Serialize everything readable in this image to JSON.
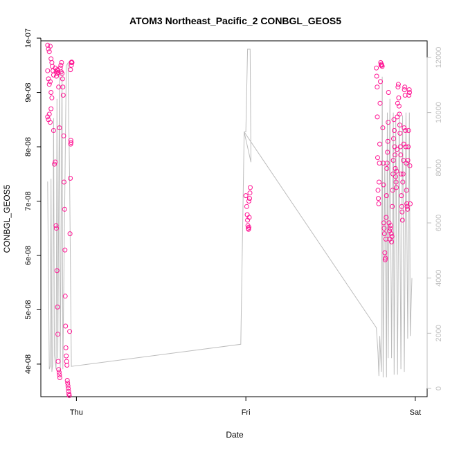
{
  "chart_data": {
    "type": "scatter",
    "title": "ATOM3 Northeast_Pacific_2 CONBGL_GEOS5",
    "xlabel": "Date",
    "ylabel": "CONBGL_GEOS5",
    "x_ticks": [
      {
        "label": "Thu",
        "day": 0
      },
      {
        "label": "Fri",
        "day": 1
      },
      {
        "label": "Sat",
        "day": 2
      }
    ],
    "xlim": [
      -0.21,
      2.07
    ],
    "ylim": [
      3.4e-08,
      9.95e-08
    ],
    "y_ticks": [
      "4e-08",
      "5e-08",
      "6e-08",
      "7e-08",
      "8e-08",
      "9e-08",
      "1e-07"
    ],
    "y_tick_values": [
      4e-08,
      5e-08,
      6e-08,
      7e-08,
      8e-08,
      9e-08,
      1e-07
    ],
    "y2_label": "",
    "y2_lim": [
      -300,
      12600
    ],
    "y2_ticks": [
      "0",
      "2000",
      "4000",
      "6000",
      "8000",
      "10000",
      "12000"
    ],
    "y2_tick_values": [
      0,
      2000,
      4000,
      6000,
      8000,
      10000,
      12000
    ],
    "series": [
      {
        "kind": "points",
        "color": "#ff1493",
        "points": [
          [
            -0.17,
            9.87e-08
          ],
          [
            -0.165,
            9.8e-08
          ],
          [
            -0.16,
            9.75e-08
          ],
          [
            -0.155,
            9.85e-08
          ],
          [
            -0.15,
            9.62e-08
          ],
          [
            -0.145,
            9.55e-08
          ],
          [
            -0.142,
            9.48e-08
          ],
          [
            -0.138,
            9.4e-08
          ],
          [
            -0.135,
            9.32e-08
          ],
          [
            -0.17,
            9.4e-08
          ],
          [
            -0.165,
            9.25e-08
          ],
          [
            -0.16,
            9.15e-08
          ],
          [
            -0.155,
            9.2e-08
          ],
          [
            -0.15,
            9e-08
          ],
          [
            -0.145,
            8.9e-08
          ],
          [
            -0.17,
            8.55e-08
          ],
          [
            -0.165,
            8.5e-08
          ],
          [
            -0.16,
            8.6e-08
          ],
          [
            -0.155,
            8.45e-08
          ],
          [
            -0.15,
            8.7e-08
          ],
          [
            -0.135,
            8.3e-08
          ],
          [
            -0.13,
            7.68e-08
          ],
          [
            -0.125,
            7.72e-08
          ],
          [
            -0.12,
            6.55e-08
          ],
          [
            -0.118,
            6.5e-08
          ],
          [
            -0.115,
            5.72e-08
          ],
          [
            -0.112,
            5.05e-08
          ],
          [
            -0.11,
            4.55e-08
          ],
          [
            -0.108,
            4.05e-08
          ],
          [
            -0.105,
            3.9e-08
          ],
          [
            -0.102,
            3.85e-08
          ],
          [
            -0.1,
            3.8e-08
          ],
          [
            -0.098,
            3.75e-08
          ],
          [
            -0.125,
            9.45e-08
          ],
          [
            -0.12,
            9.38e-08
          ],
          [
            -0.118,
            9.3e-08
          ],
          [
            -0.115,
            9.35e-08
          ],
          [
            -0.112,
            9.42e-08
          ],
          [
            -0.11,
            9.4e-08
          ],
          [
            -0.108,
            9.37e-08
          ],
          [
            -0.105,
            9.1e-08
          ],
          [
            -0.1,
            8.35e-08
          ],
          [
            -0.095,
            9.45e-08
          ],
          [
            -0.092,
            9.5e-08
          ],
          [
            -0.09,
            9.38e-08
          ],
          [
            -0.088,
            9.55e-08
          ],
          [
            -0.085,
            9.35e-08
          ],
          [
            -0.082,
            9.25e-08
          ],
          [
            -0.08,
            9.1e-08
          ],
          [
            -0.078,
            8.95e-08
          ],
          [
            -0.075,
            8.2e-08
          ],
          [
            -0.073,
            7.35e-08
          ],
          [
            -0.07,
            6.85e-08
          ],
          [
            -0.068,
            6.1e-08
          ],
          [
            -0.066,
            5.25e-08
          ],
          [
            -0.064,
            4.7e-08
          ],
          [
            -0.062,
            4.3e-08
          ],
          [
            -0.06,
            4.15e-08
          ],
          [
            -0.058,
            4.05e-08
          ],
          [
            -0.056,
            3.98e-08
          ],
          [
            -0.054,
            3.7e-08
          ],
          [
            -0.052,
            3.65e-08
          ],
          [
            -0.05,
            3.6e-08
          ],
          [
            -0.048,
            3.55e-08
          ],
          [
            -0.046,
            3.5e-08
          ],
          [
            -0.044,
            3.45e-08
          ],
          [
            -0.042,
            3.42e-08
          ],
          [
            -0.04,
            4.6e-08
          ],
          [
            -0.038,
            6.4e-08
          ],
          [
            -0.036,
            7.42e-08
          ],
          [
            -0.034,
            8.05e-08
          ],
          [
            -0.033,
            8.12e-08
          ],
          [
            -0.032,
            8.08e-08
          ],
          [
            -0.031,
            9.55e-08
          ],
          [
            -0.03,
            9.5e-08
          ],
          [
            -0.028,
            9.56e-08
          ],
          [
            -0.026,
            9.55e-08
          ],
          [
            -0.035,
            9.42e-08
          ],
          [
            1.0,
            7.1e-08
          ],
          [
            1.005,
            6.9e-08
          ],
          [
            1.008,
            6.75e-08
          ],
          [
            1.01,
            6.65e-08
          ],
          [
            1.012,
            6.55e-08
          ],
          [
            1.014,
            6.5e-08
          ],
          [
            1.016,
            6.48e-08
          ],
          [
            1.018,
            6.52e-08
          ],
          [
            1.02,
            6.7e-08
          ],
          [
            1.022,
            7.05e-08
          ],
          [
            1.024,
            7.15e-08
          ],
          [
            1.026,
            7.25e-08
          ],
          [
            1.018,
            7e-08
          ],
          [
            1.77,
            9.45e-08
          ],
          [
            1.772,
            9.3e-08
          ],
          [
            1.775,
            9.1e-08
          ],
          [
            1.776,
            8.55e-08
          ],
          [
            1.778,
            7.8e-08
          ],
          [
            1.78,
            7.2e-08
          ],
          [
            1.782,
            7.05e-08
          ],
          [
            1.784,
            6.95e-08
          ],
          [
            1.786,
            7.35e-08
          ],
          [
            1.788,
            7.7e-08
          ],
          [
            1.79,
            8.05e-08
          ],
          [
            1.792,
            8.8e-08
          ],
          [
            1.794,
            9.2e-08
          ],
          [
            1.796,
            9.55e-08
          ],
          [
            1.798,
            9.5e-08
          ],
          [
            1.8,
            9.52e-08
          ],
          [
            1.802,
            9.5e-08
          ],
          [
            1.805,
            9.48e-08
          ],
          [
            1.808,
            8.35e-08
          ],
          [
            1.81,
            7.7e-08
          ],
          [
            1.812,
            7.3e-08
          ],
          [
            1.814,
            6.6e-08
          ],
          [
            1.816,
            6.5e-08
          ],
          [
            1.818,
            6.4e-08
          ],
          [
            1.82,
            6.05e-08
          ],
          [
            1.822,
            5.92e-08
          ],
          [
            1.824,
            5.95e-08
          ],
          [
            1.826,
            6.3e-08
          ],
          [
            1.828,
            6.7e-08
          ],
          [
            1.83,
            7.1e-08
          ],
          [
            1.832,
            7.6e-08
          ],
          [
            1.834,
            7.7e-08
          ],
          [
            1.836,
            7.9e-08
          ],
          [
            1.838,
            8.1e-08
          ],
          [
            1.84,
            8.45e-08
          ],
          [
            1.842,
            9e-08
          ],
          [
            1.845,
            6.6e-08
          ],
          [
            1.848,
            6.45e-08
          ],
          [
            1.85,
            6.3e-08
          ],
          [
            1.852,
            6.5e-08
          ],
          [
            1.855,
            6.55e-08
          ],
          [
            1.858,
            6.4e-08
          ],
          [
            1.86,
            6.25e-08
          ],
          [
            1.862,
            6.35e-08
          ],
          [
            1.864,
            6.9e-08
          ],
          [
            1.866,
            7.2e-08
          ],
          [
            1.868,
            7.5e-08
          ],
          [
            1.87,
            7.75e-08
          ],
          [
            1.872,
            8.15e-08
          ],
          [
            1.874,
            8.5e-08
          ],
          [
            1.876,
            8.3e-08
          ],
          [
            1.878,
            8e-08
          ],
          [
            1.88,
            7.85e-08
          ],
          [
            1.882,
            7.6e-08
          ],
          [
            1.884,
            7.45e-08
          ],
          [
            1.886,
            7.35e-08
          ],
          [
            1.888,
            7.25e-08
          ],
          [
            1.89,
            7.55e-08
          ],
          [
            1.892,
            7.95e-08
          ],
          [
            1.894,
            8.55e-08
          ],
          [
            1.896,
            8.8e-08
          ],
          [
            1.898,
            9.1e-08
          ],
          [
            1.9,
            9.15e-08
          ],
          [
            1.902,
            8.9e-08
          ],
          [
            1.904,
            8.75e-08
          ],
          [
            1.906,
            8.6e-08
          ],
          [
            1.908,
            8.4e-08
          ],
          [
            1.91,
            8.25e-08
          ],
          [
            1.912,
            8e-08
          ],
          [
            1.914,
            7.85e-08
          ],
          [
            1.916,
            7.5e-08
          ],
          [
            1.918,
            7.1e-08
          ],
          [
            1.92,
            6.9e-08
          ],
          [
            1.922,
            6.8e-08
          ],
          [
            1.924,
            6.65e-08
          ],
          [
            1.926,
            7.35e-08
          ],
          [
            1.928,
            7.5e-08
          ],
          [
            1.93,
            7.75e-08
          ],
          [
            1.932,
            8.05e-08
          ],
          [
            1.934,
            8.35e-08
          ],
          [
            1.936,
            9.05e-08
          ],
          [
            1.938,
            9.1e-08
          ],
          [
            1.94,
            8.95e-08
          ],
          [
            1.942,
            8.3e-08
          ],
          [
            1.944,
            8e-08
          ],
          [
            1.946,
            7.7e-08
          ],
          [
            1.948,
            7.2e-08
          ],
          [
            1.95,
            6.95e-08
          ],
          [
            1.952,
            6.9e-08
          ],
          [
            1.954,
            6.85e-08
          ],
          [
            1.956,
            7.75e-08
          ],
          [
            1.958,
            8e-08
          ],
          [
            1.96,
            8.3e-08
          ],
          [
            1.962,
            8.95e-08
          ],
          [
            1.964,
            9.05e-08
          ],
          [
            1.966,
            9e-08
          ],
          [
            1.968,
            7.65e-08
          ],
          [
            1.97,
            6.95e-08
          ]
        ]
      },
      {
        "kind": "line",
        "axis": "right",
        "color": "#bdbdbd",
        "points": [
          [
            -0.17,
            7500
          ],
          [
            -0.16,
            700
          ],
          [
            -0.155,
            800
          ],
          [
            -0.15,
            7600
          ],
          [
            -0.145,
            600
          ],
          [
            -0.14,
            850
          ],
          [
            -0.135,
            9800
          ],
          [
            -0.13,
            1200
          ],
          [
            -0.12,
            700
          ],
          [
            -0.115,
            10500
          ],
          [
            -0.11,
            1100
          ],
          [
            -0.1,
            11500
          ],
          [
            -0.095,
            600
          ],
          [
            -0.085,
            11600
          ],
          [
            -0.08,
            700
          ],
          [
            -0.06,
            11700
          ],
          [
            -0.05,
            11800
          ],
          [
            -0.04,
            7500
          ],
          [
            -0.03,
            800
          ],
          [
            0.97,
            1600
          ],
          [
            0.99,
            9300
          ],
          [
            1.0,
            9300
          ],
          [
            1.01,
            12300
          ],
          [
            1.025,
            12300
          ],
          [
            1.03,
            8200
          ],
          [
            0.99,
            9300
          ],
          [
            1.77,
            2200
          ],
          [
            1.78,
            1300
          ],
          [
            1.785,
            450
          ],
          [
            1.79,
            1900
          ],
          [
            1.8,
            600
          ],
          [
            1.805,
            11300
          ],
          [
            1.81,
            400
          ],
          [
            1.82,
            8200
          ],
          [
            1.83,
            400
          ],
          [
            1.835,
            10000
          ],
          [
            1.84,
            1100
          ],
          [
            1.85,
            10500
          ],
          [
            1.86,
            1100
          ],
          [
            1.87,
            10000
          ],
          [
            1.875,
            500
          ],
          [
            1.885,
            9800
          ],
          [
            1.895,
            500
          ],
          [
            1.905,
            10000
          ],
          [
            1.915,
            700
          ],
          [
            1.925,
            9900
          ],
          [
            1.935,
            600
          ],
          [
            1.945,
            10000
          ],
          [
            1.955,
            1800
          ],
          [
            1.965,
            10000
          ],
          [
            1.97,
            1900
          ],
          [
            1.98,
            4000
          ]
        ]
      }
    ],
    "grid": false
  }
}
